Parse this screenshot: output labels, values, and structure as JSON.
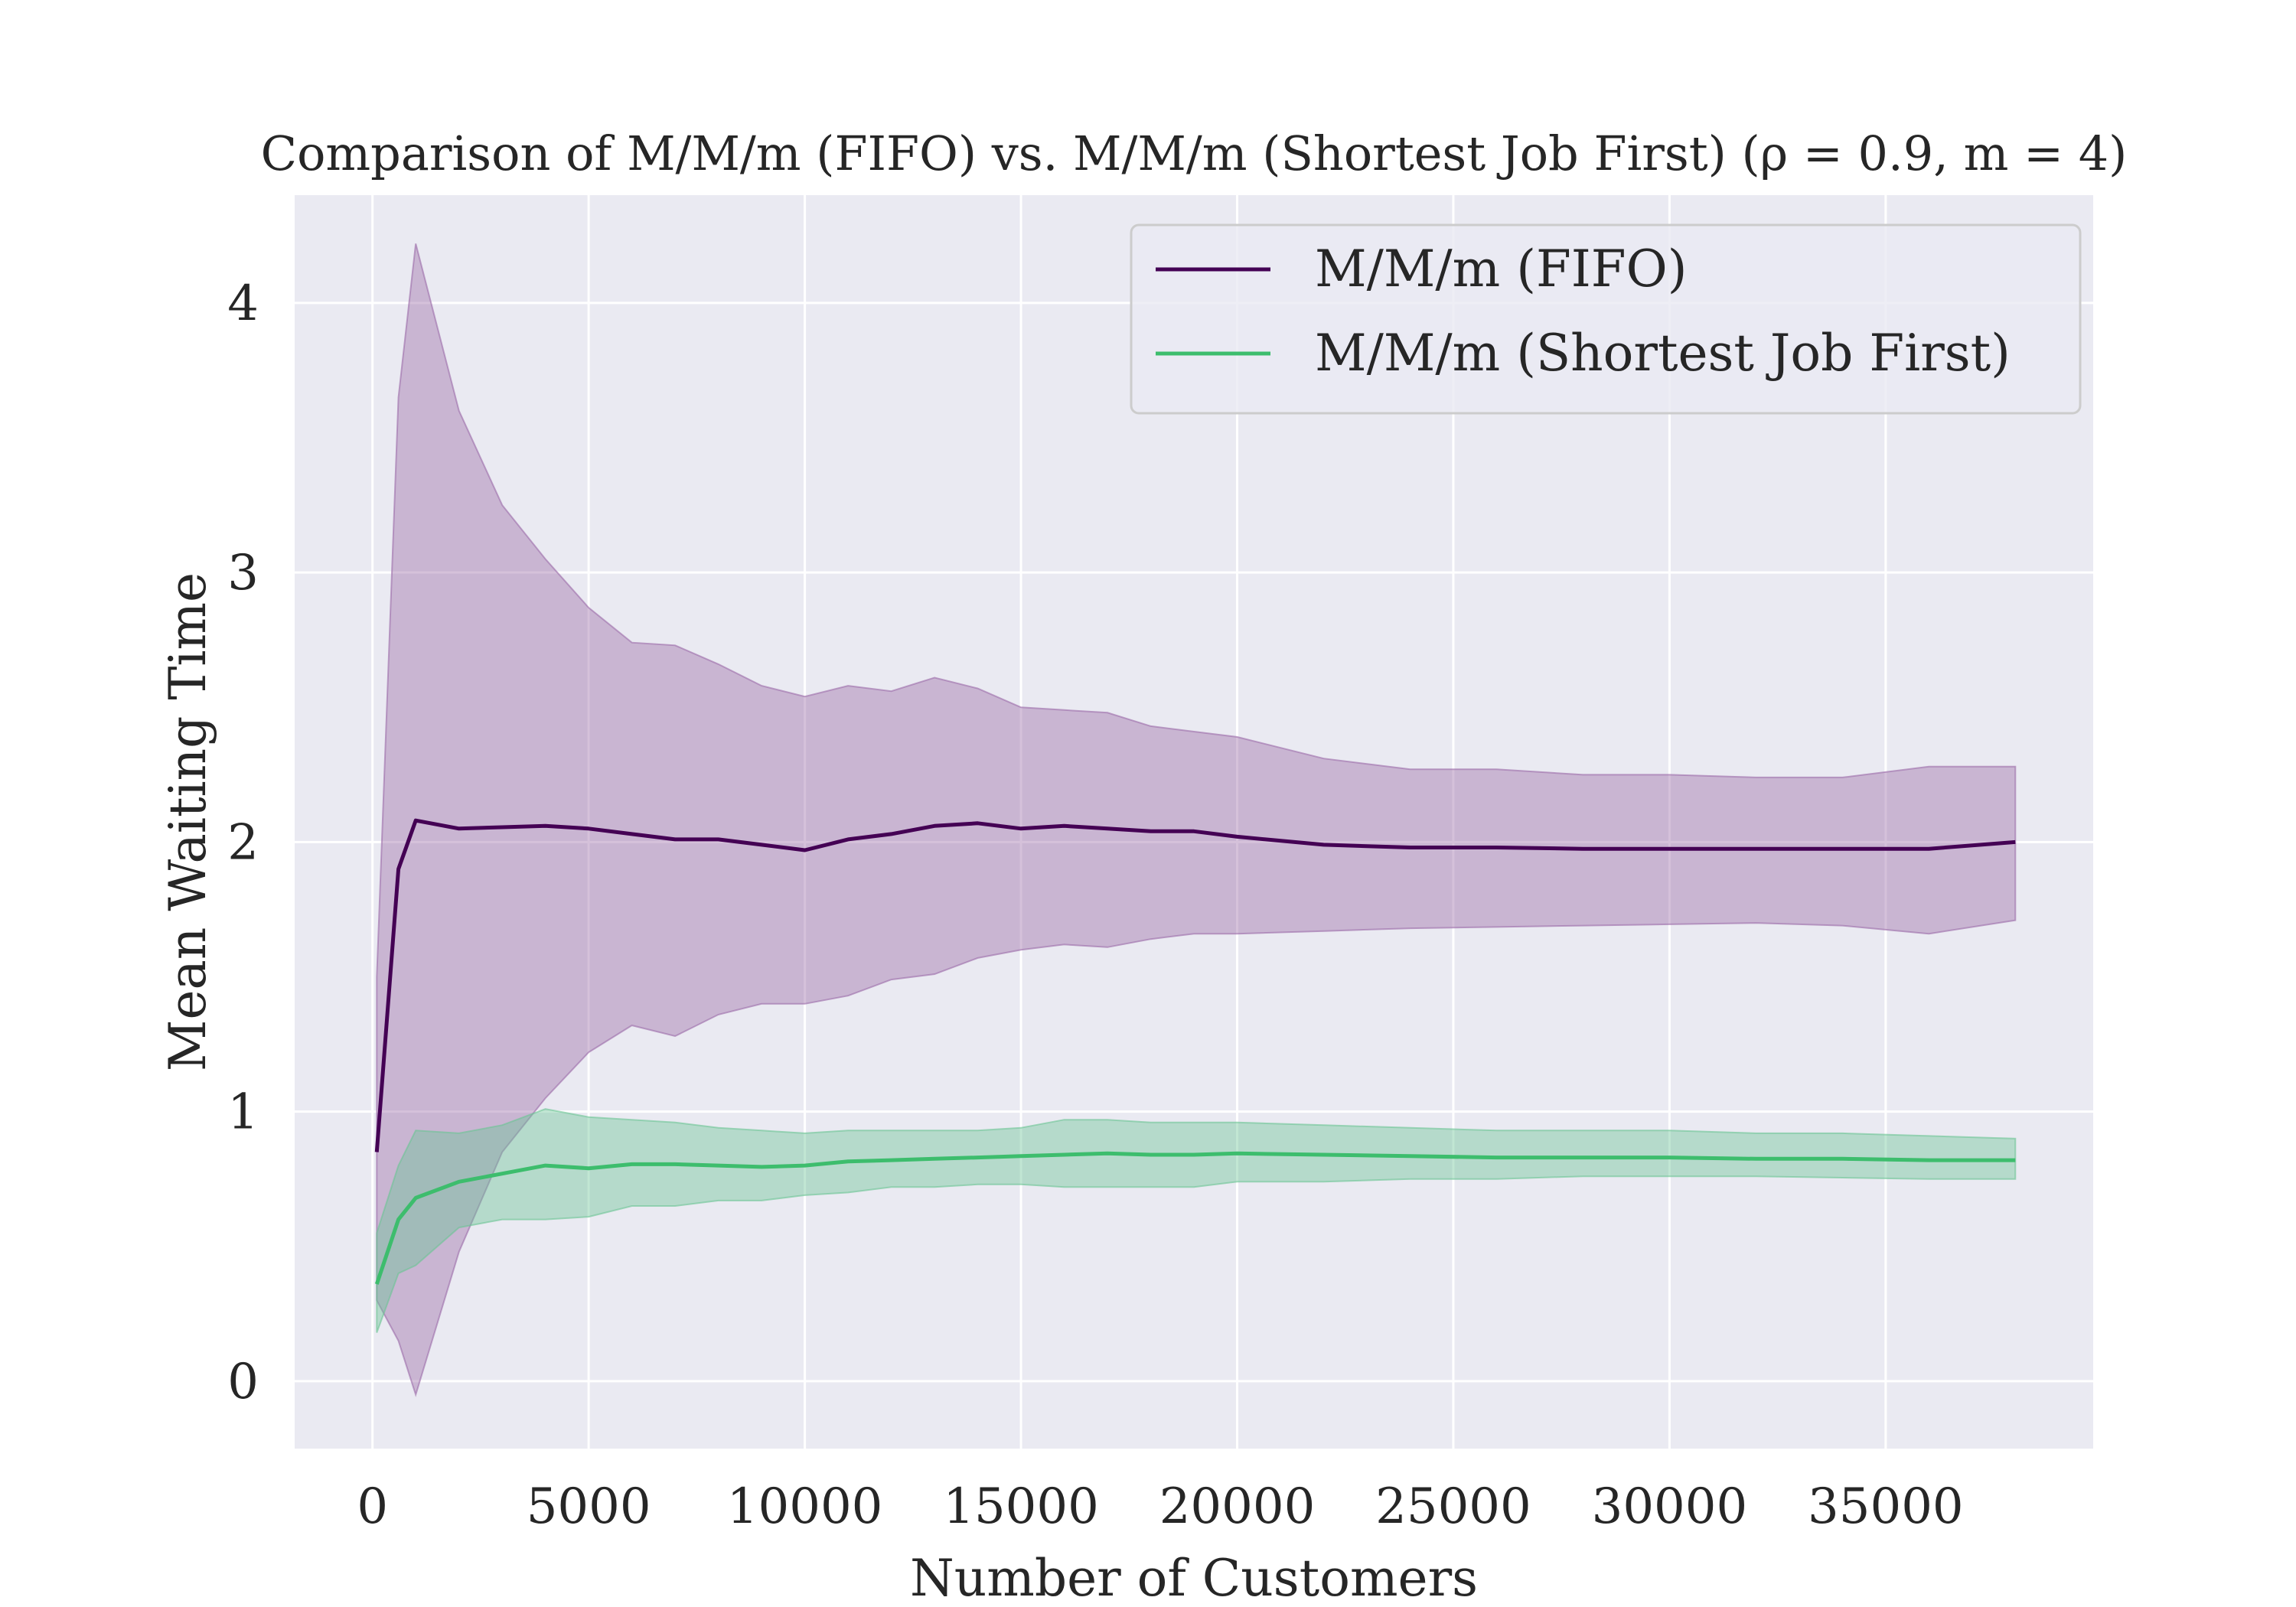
{
  "chart_data": {
    "type": "line",
    "title": "Comparison of M/M/m (FIFO) vs. M/M/m (Shortest Job First) (ρ = 0.9, m = 4)",
    "xlabel": "Number of Customers",
    "ylabel": "Mean Waiting Time",
    "xlim": [
      -1800,
      39800
    ],
    "ylim": [
      -0.25,
      4.4
    ],
    "xticks": [
      0,
      5000,
      10000,
      15000,
      20000,
      25000,
      30000,
      35000
    ],
    "yticks": [
      0,
      1,
      2,
      3,
      4
    ],
    "grid": true,
    "legend_position": "top-right",
    "series": [
      {
        "name": "M/M/m (FIFO)",
        "color": "#440154",
        "band_color": "#9b6ba8",
        "x": [
          100,
          600,
          1000,
          2000,
          3000,
          4000,
          5000,
          6000,
          7000,
          8000,
          9000,
          10000,
          11000,
          12000,
          13000,
          14000,
          15000,
          16000,
          17000,
          18000,
          19000,
          20000,
          22000,
          24000,
          26000,
          28000,
          30000,
          32000,
          34000,
          36000,
          38000
        ],
        "mean": [
          0.85,
          1.9,
          2.08,
          2.05,
          2.055,
          2.06,
          2.05,
          2.03,
          2.01,
          2.01,
          1.99,
          1.97,
          2.01,
          2.03,
          2.06,
          2.07,
          2.05,
          2.06,
          2.05,
          2.04,
          2.04,
          2.02,
          1.99,
          1.98,
          1.98,
          1.975,
          1.975,
          1.975,
          1.975,
          1.975,
          2.0
        ],
        "upper": [
          1.5,
          3.65,
          4.22,
          3.6,
          3.25,
          3.05,
          2.87,
          2.74,
          2.73,
          2.66,
          2.58,
          2.54,
          2.58,
          2.56,
          2.61,
          2.57,
          2.5,
          2.49,
          2.48,
          2.43,
          2.41,
          2.39,
          2.31,
          2.27,
          2.27,
          2.25,
          2.25,
          2.24,
          2.24,
          2.28,
          2.28
        ],
        "lower": [
          0.3,
          0.15,
          -0.05,
          0.48,
          0.85,
          1.05,
          1.22,
          1.32,
          1.28,
          1.36,
          1.4,
          1.4,
          1.43,
          1.49,
          1.51,
          1.57,
          1.6,
          1.62,
          1.61,
          1.64,
          1.66,
          1.66,
          1.67,
          1.68,
          1.685,
          1.69,
          1.695,
          1.7,
          1.69,
          1.66,
          1.71
        ]
      },
      {
        "name": "M/M/m (Shortest Job First)",
        "color": "#3dbd6d",
        "band_color": "#6cc495",
        "x": [
          100,
          600,
          1000,
          2000,
          3000,
          4000,
          5000,
          6000,
          7000,
          8000,
          9000,
          10000,
          11000,
          12000,
          13000,
          14000,
          15000,
          16000,
          17000,
          18000,
          19000,
          20000,
          22000,
          24000,
          26000,
          28000,
          30000,
          32000,
          34000,
          36000,
          38000
        ],
        "mean": [
          0.36,
          0.6,
          0.68,
          0.74,
          0.77,
          0.8,
          0.79,
          0.805,
          0.805,
          0.8,
          0.795,
          0.8,
          0.815,
          0.82,
          0.825,
          0.83,
          0.835,
          0.84,
          0.845,
          0.84,
          0.84,
          0.845,
          0.84,
          0.835,
          0.83,
          0.83,
          0.83,
          0.825,
          0.825,
          0.82,
          0.82
        ],
        "upper": [
          0.55,
          0.8,
          0.93,
          0.92,
          0.95,
          1.01,
          0.98,
          0.97,
          0.96,
          0.94,
          0.93,
          0.92,
          0.93,
          0.93,
          0.93,
          0.93,
          0.94,
          0.97,
          0.97,
          0.96,
          0.96,
          0.96,
          0.95,
          0.94,
          0.93,
          0.93,
          0.93,
          0.92,
          0.92,
          0.91,
          0.9
        ],
        "lower": [
          0.18,
          0.4,
          0.43,
          0.57,
          0.6,
          0.6,
          0.61,
          0.65,
          0.65,
          0.67,
          0.67,
          0.69,
          0.7,
          0.72,
          0.72,
          0.73,
          0.73,
          0.72,
          0.72,
          0.72,
          0.72,
          0.74,
          0.74,
          0.75,
          0.75,
          0.76,
          0.76,
          0.76,
          0.755,
          0.75,
          0.75
        ]
      }
    ]
  }
}
